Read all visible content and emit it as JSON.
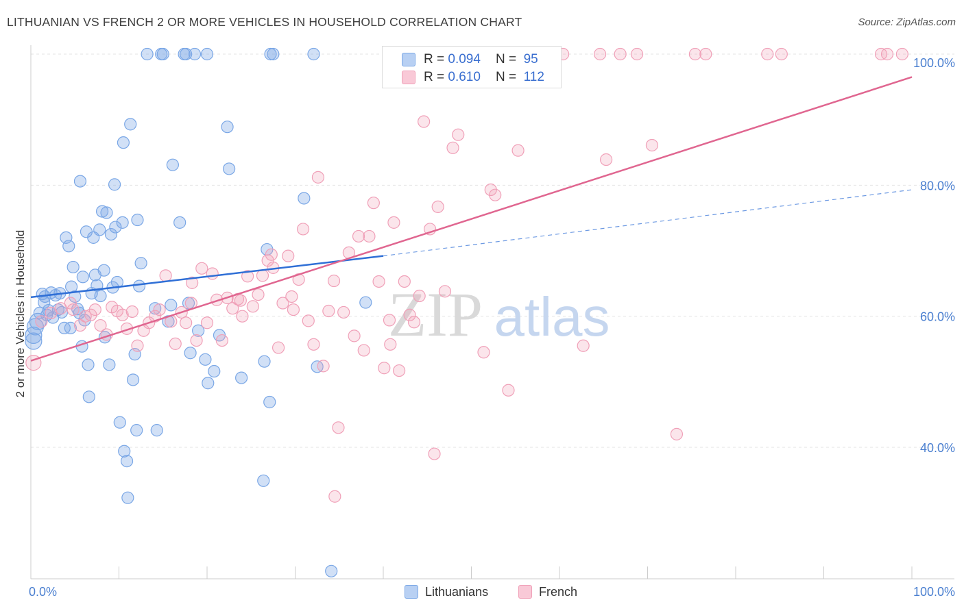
{
  "title": "LITHUANIAN VS FRENCH 2 OR MORE VEHICLES IN HOUSEHOLD CORRELATION CHART",
  "source": "Source: ZipAtlas.com",
  "watermark": {
    "zip": "ZIP",
    "atlas": "atlas"
  },
  "legend": {
    "rows": [
      {
        "r_label": "R =",
        "r_value": "0.094",
        "n_label": "N =",
        "n_value": "95"
      },
      {
        "r_label": "R =",
        "r_value": "0.610",
        "n_label": "N =",
        "n_value": "112"
      }
    ]
  },
  "colors": {
    "blue": "#7aa7e6",
    "blue_line": "#2f6fd6",
    "pink": "#f0a0b8",
    "pink_line": "#e06690",
    "tick_label": "#4a7fd0"
  },
  "chart_data": {
    "type": "scatter",
    "title": "LITHUANIAN VS FRENCH 2 OR MORE VEHICLES IN HOUSEHOLD CORRELATION CHART",
    "xlabel": "",
    "ylabel": "2 or more Vehicles in Household",
    "x_tick_labels": [
      "0.0%",
      "100.0%"
    ],
    "y_tick_labels": [
      "40.0%",
      "60.0%",
      "80.0%",
      "100.0%"
    ],
    "y_ticks": [
      40,
      60,
      80,
      100
    ],
    "xlim": [
      0,
      100
    ],
    "ylim": [
      21,
      102
    ],
    "grid": true,
    "legend_position": "top-center",
    "series": [
      {
        "name": "Lithuanians",
        "color": "#7aa7e6",
        "trend": {
          "x0": 0,
          "y0": 62.9,
          "x1": 40,
          "y1": 69.2,
          "dashed_to_x": 100,
          "dashed_y1": 79.3
        },
        "points": [
          [
            0.3,
            56.2
          ],
          [
            0.3,
            57.1
          ],
          [
            0.5,
            58.4
          ],
          [
            0.8,
            59.2
          ],
          [
            1.0,
            60.5
          ],
          [
            1.3,
            63.4
          ],
          [
            1.5,
            62.1
          ],
          [
            1.6,
            63.0
          ],
          [
            1.8,
            60.2
          ],
          [
            2.0,
            60.9
          ],
          [
            2.3,
            63.6
          ],
          [
            2.5,
            59.8
          ],
          [
            2.8,
            63.2
          ],
          [
            3.1,
            61.0
          ],
          [
            3.3,
            63.5
          ],
          [
            3.5,
            60.6
          ],
          [
            3.8,
            58.2
          ],
          [
            4.0,
            72.0
          ],
          [
            4.3,
            70.7
          ],
          [
            4.5,
            58.2
          ],
          [
            4.6,
            64.5
          ],
          [
            4.8,
            67.5
          ],
          [
            5.0,
            63.0
          ],
          [
            5.3,
            61.1
          ],
          [
            5.5,
            60.5
          ],
          [
            5.6,
            80.6
          ],
          [
            5.8,
            55.4
          ],
          [
            5.9,
            66.0
          ],
          [
            6.1,
            59.4
          ],
          [
            6.3,
            72.9
          ],
          [
            6.5,
            52.6
          ],
          [
            6.6,
            47.7
          ],
          [
            6.9,
            63.5
          ],
          [
            7.1,
            72.0
          ],
          [
            7.3,
            66.3
          ],
          [
            7.5,
            64.7
          ],
          [
            7.8,
            73.2
          ],
          [
            7.9,
            63.1
          ],
          [
            8.1,
            76.0
          ],
          [
            8.3,
            67.0
          ],
          [
            8.4,
            56.8
          ],
          [
            8.6,
            75.8
          ],
          [
            8.9,
            52.6
          ],
          [
            9.1,
            72.5
          ],
          [
            9.3,
            64.4
          ],
          [
            9.5,
            80.1
          ],
          [
            9.6,
            73.6
          ],
          [
            9.8,
            65.2
          ],
          [
            10.1,
            43.8
          ],
          [
            10.4,
            74.3
          ],
          [
            10.5,
            86.5
          ],
          [
            10.6,
            39.4
          ],
          [
            10.9,
            37.9
          ],
          [
            11.0,
            32.3
          ],
          [
            11.3,
            89.3
          ],
          [
            11.6,
            50.3
          ],
          [
            11.8,
            54.2
          ],
          [
            12.0,
            42.6
          ],
          [
            12.1,
            74.7
          ],
          [
            12.3,
            64.6
          ],
          [
            12.5,
            68.1
          ],
          [
            14.3,
            42.6
          ],
          [
            14.1,
            61.2
          ],
          [
            15.6,
            59.2
          ],
          [
            15.9,
            61.7
          ],
          [
            16.1,
            83.1
          ],
          [
            16.9,
            74.3
          ],
          [
            17.4,
            100
          ],
          [
            17.6,
            100
          ],
          [
            17.9,
            62.0
          ],
          [
            18.1,
            54.4
          ],
          [
            18.6,
            100
          ],
          [
            19.0,
            57.8
          ],
          [
            19.8,
            53.4
          ],
          [
            20.1,
            49.8
          ],
          [
            20.8,
            51.6
          ],
          [
            21.4,
            57.1
          ],
          [
            22.3,
            88.9
          ],
          [
            22.5,
            82.5
          ],
          [
            23.9,
            50.6
          ],
          [
            26.4,
            34.9
          ],
          [
            26.5,
            53.1
          ],
          [
            26.8,
            70.2
          ],
          [
            27.1,
            46.9
          ],
          [
            27.5,
            100
          ],
          [
            31.0,
            78.0
          ],
          [
            32.5,
            52.3
          ],
          [
            34.1,
            21.1
          ],
          [
            38.0,
            62.1
          ],
          [
            13.2,
            100
          ],
          [
            20.0,
            100
          ],
          [
            27.2,
            100
          ],
          [
            32.1,
            100
          ],
          [
            14.8,
            100
          ],
          [
            15.0,
            100
          ]
        ]
      },
      {
        "name": "French",
        "color": "#f0a0b8",
        "trend": {
          "x0": 0,
          "y0": 53.2,
          "x1": 100,
          "y1": 96.5
        },
        "points": [
          [
            0.3,
            52.9
          ],
          [
            1.2,
            59.2
          ],
          [
            2.3,
            60.5
          ],
          [
            3.4,
            61.2
          ],
          [
            4.5,
            62.0
          ],
          [
            4.8,
            61.0
          ],
          [
            5.6,
            58.6
          ],
          [
            6.2,
            60.0
          ],
          [
            6.8,
            60.2
          ],
          [
            7.3,
            61.0
          ],
          [
            7.9,
            58.6
          ],
          [
            8.6,
            57.2
          ],
          [
            9.2,
            61.4
          ],
          [
            9.8,
            60.8
          ],
          [
            10.4,
            60.2
          ],
          [
            10.9,
            58.1
          ],
          [
            11.5,
            60.7
          ],
          [
            12.1,
            55.5
          ],
          [
            12.8,
            57.8
          ],
          [
            13.4,
            59.0
          ],
          [
            14.1,
            60.0
          ],
          [
            14.6,
            61.0
          ],
          [
            15.3,
            66.2
          ],
          [
            15.9,
            59.2
          ],
          [
            16.4,
            55.8
          ],
          [
            17.1,
            60.6
          ],
          [
            17.6,
            59.0
          ],
          [
            18.2,
            62.0
          ],
          [
            18.8,
            56.3
          ],
          [
            19.4,
            67.3
          ],
          [
            20.0,
            59.0
          ],
          [
            20.6,
            66.5
          ],
          [
            21.1,
            62.5
          ],
          [
            21.7,
            56.3
          ],
          [
            22.3,
            62.8
          ],
          [
            22.9,
            61.2
          ],
          [
            23.5,
            62.6
          ],
          [
            24.0,
            60.0
          ],
          [
            24.6,
            66.1
          ],
          [
            25.2,
            61.5
          ],
          [
            25.8,
            63.3
          ],
          [
            26.3,
            66.2
          ],
          [
            26.9,
            68.5
          ],
          [
            27.5,
            67.4
          ],
          [
            28.1,
            55.2
          ],
          [
            28.6,
            62.0
          ],
          [
            29.2,
            69.2
          ],
          [
            29.8,
            61.0
          ],
          [
            30.4,
            65.6
          ],
          [
            30.9,
            73.3
          ],
          [
            31.5,
            59.3
          ],
          [
            32.1,
            55.7
          ],
          [
            32.6,
            81.2
          ],
          [
            33.2,
            52.4
          ],
          [
            33.8,
            60.8
          ],
          [
            34.4,
            65.4
          ],
          [
            34.9,
            43.0
          ],
          [
            35.5,
            60.6
          ],
          [
            36.1,
            69.7
          ],
          [
            36.7,
            57.0
          ],
          [
            37.2,
            72.2
          ],
          [
            37.8,
            54.8
          ],
          [
            38.4,
            72.2
          ],
          [
            38.9,
            77.3
          ],
          [
            39.5,
            65.3
          ],
          [
            40.1,
            52.1
          ],
          [
            40.7,
            59.4
          ],
          [
            41.2,
            74.3
          ],
          [
            41.8,
            51.7
          ],
          [
            42.4,
            65.3
          ],
          [
            43.0,
            60.2
          ],
          [
            43.5,
            59.1
          ],
          [
            44.1,
            63.1
          ],
          [
            44.6,
            89.7
          ],
          [
            45.3,
            73.3
          ],
          [
            45.8,
            39.0
          ],
          [
            46.2,
            76.7
          ],
          [
            47.0,
            63.8
          ],
          [
            47.4,
            100
          ],
          [
            47.9,
            85.7
          ],
          [
            48.5,
            87.7
          ],
          [
            49.1,
            100
          ],
          [
            49.5,
            100
          ],
          [
            50.0,
            100
          ],
          [
            51.4,
            54.5
          ],
          [
            52.2,
            79.3
          ],
          [
            52.7,
            78.5
          ],
          [
            54.2,
            48.7
          ],
          [
            55.3,
            85.3
          ],
          [
            56.8,
            100
          ],
          [
            57.4,
            100
          ],
          [
            60.4,
            100
          ],
          [
            62.7,
            55.5
          ],
          [
            64.6,
            100
          ],
          [
            65.3,
            83.9
          ],
          [
            66.9,
            100
          ],
          [
            68.8,
            100
          ],
          [
            70.5,
            86.1
          ],
          [
            73.3,
            42.0
          ],
          [
            75.4,
            100
          ],
          [
            76.6,
            100
          ],
          [
            83.6,
            100
          ],
          [
            85.2,
            100
          ],
          [
            96.5,
            100
          ],
          [
            97.2,
            100
          ],
          [
            98.9,
            100
          ],
          [
            23.8,
            62.4
          ],
          [
            34.5,
            32.5
          ],
          [
            40.8,
            55.7
          ],
          [
            27.3,
            69.4
          ],
          [
            18.3,
            65.1
          ],
          [
            29.6,
            63.0
          ]
        ]
      }
    ]
  },
  "bottom_legend": [
    "Lithuanians",
    "French"
  ]
}
